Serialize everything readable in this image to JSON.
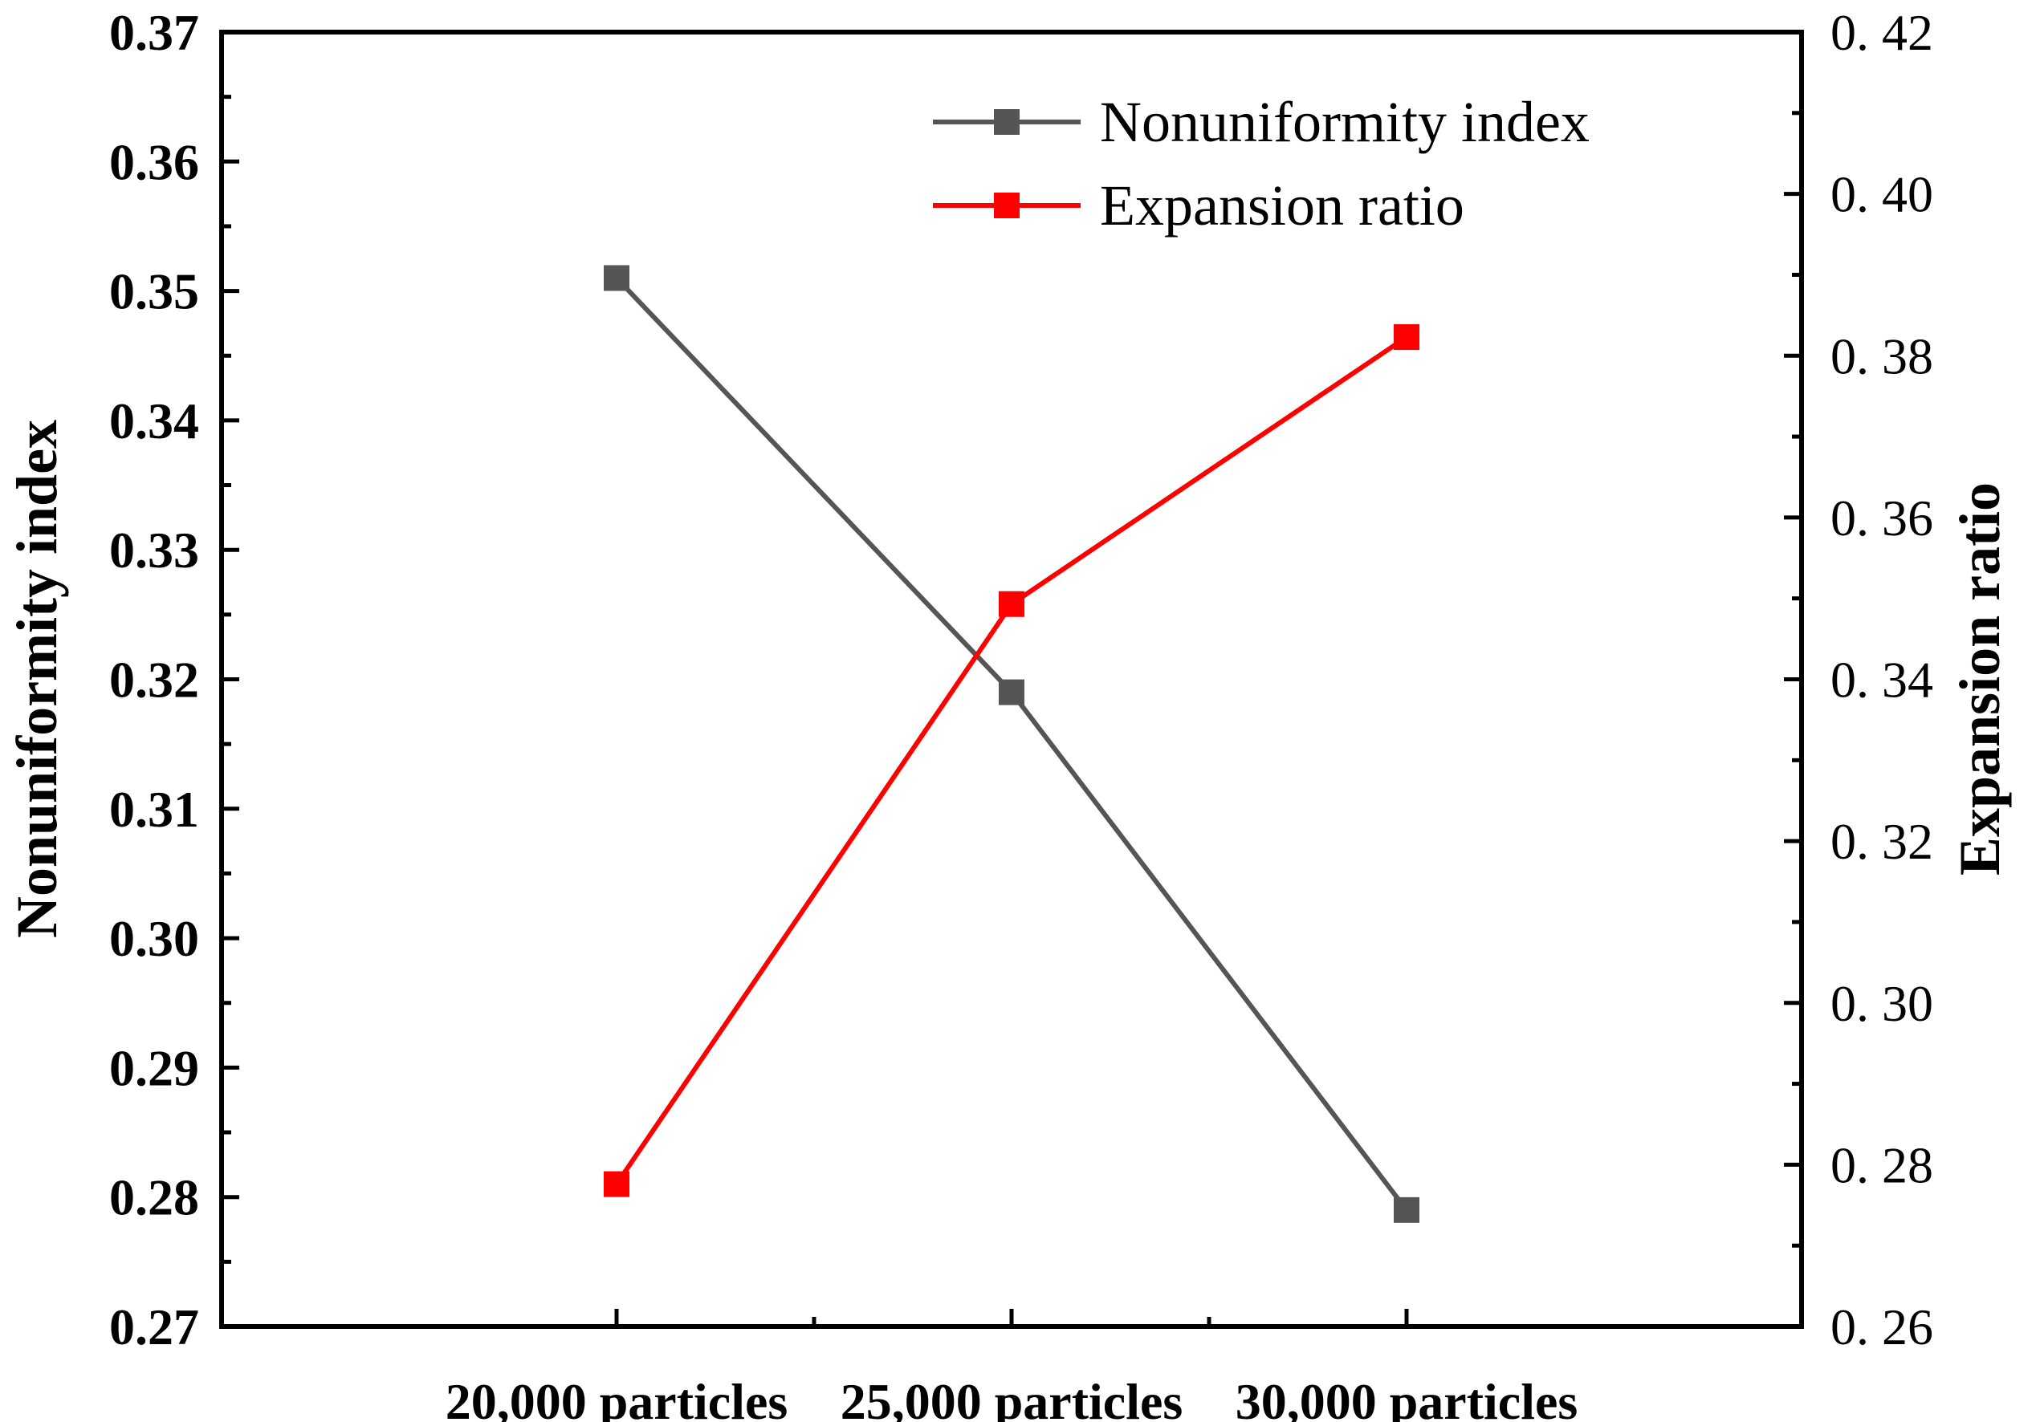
{
  "chart_data": {
    "type": "line",
    "categories": [
      "20,000 particles",
      "25,000 particles",
      "30,000 particles"
    ],
    "series": [
      {
        "name": "Nonuniformity index",
        "axis": "left",
        "color": "#555555",
        "marker": "square",
        "values": [
          0.351,
          0.319,
          0.279
        ]
      },
      {
        "name": "Expansion ratio",
        "axis": "right",
        "color": "#ff0000",
        "marker": "square",
        "values": [
          0.2776,
          0.3493,
          0.3823
        ]
      }
    ],
    "ylabel_left": "Nonuniformity index",
    "ylabel_right": "Expansion ratio",
    "ylim_left": [
      0.27,
      0.37
    ],
    "ylim_right": [
      0.26,
      0.42
    ],
    "yticks_left": [
      "0.27",
      "0.28",
      "0.29",
      "0.30",
      "0.31",
      "0.32",
      "0.33",
      "0.34",
      "0.35",
      "0.36",
      "0.37"
    ],
    "yticks_right": [
      "0. 26",
      "0. 28",
      "0. 30",
      "0. 32",
      "0. 34",
      "0. 36",
      "0. 38",
      "0. 40",
      "0. 42"
    ],
    "legend_position": "top-right",
    "grid": false
  }
}
